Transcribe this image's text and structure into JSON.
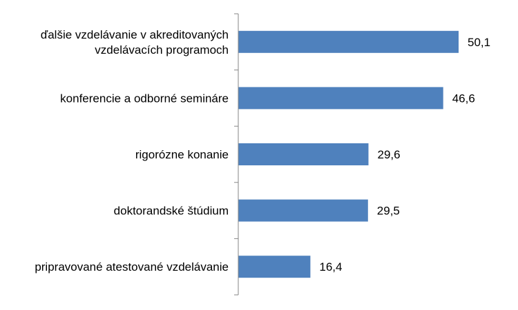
{
  "chart_data": {
    "type": "bar",
    "orientation": "horizontal",
    "categories": [
      "ďalšie vzdelávanie v akreditovaných vzdelávacích programoch",
      "konferencie a odborné semináre",
      "rigorózne konanie",
      "doktorandské štúdium",
      "pripravované atestované vzdelávanie"
    ],
    "category_lines": [
      [
        "ďalšie vzdelávanie v akreditovaných",
        "vzdelávacích programoch"
      ],
      [
        "konferencie a odborné semináre"
      ],
      [
        "rigorózne konanie"
      ],
      [
        "doktorandské štúdium"
      ],
      [
        "pripravované atestované vzdelávanie"
      ]
    ],
    "values": [
      50.1,
      46.6,
      29.6,
      29.5,
      16.4
    ],
    "value_labels": [
      "50,1",
      "46,6",
      "29,6",
      "29,5",
      "16,4"
    ],
    "xlim": [
      0,
      60
    ],
    "title": "",
    "xlabel": "",
    "ylabel": "",
    "grid": false,
    "legend": "none",
    "bar_color": "#4F81BD",
    "axis_color": "#868686"
  }
}
